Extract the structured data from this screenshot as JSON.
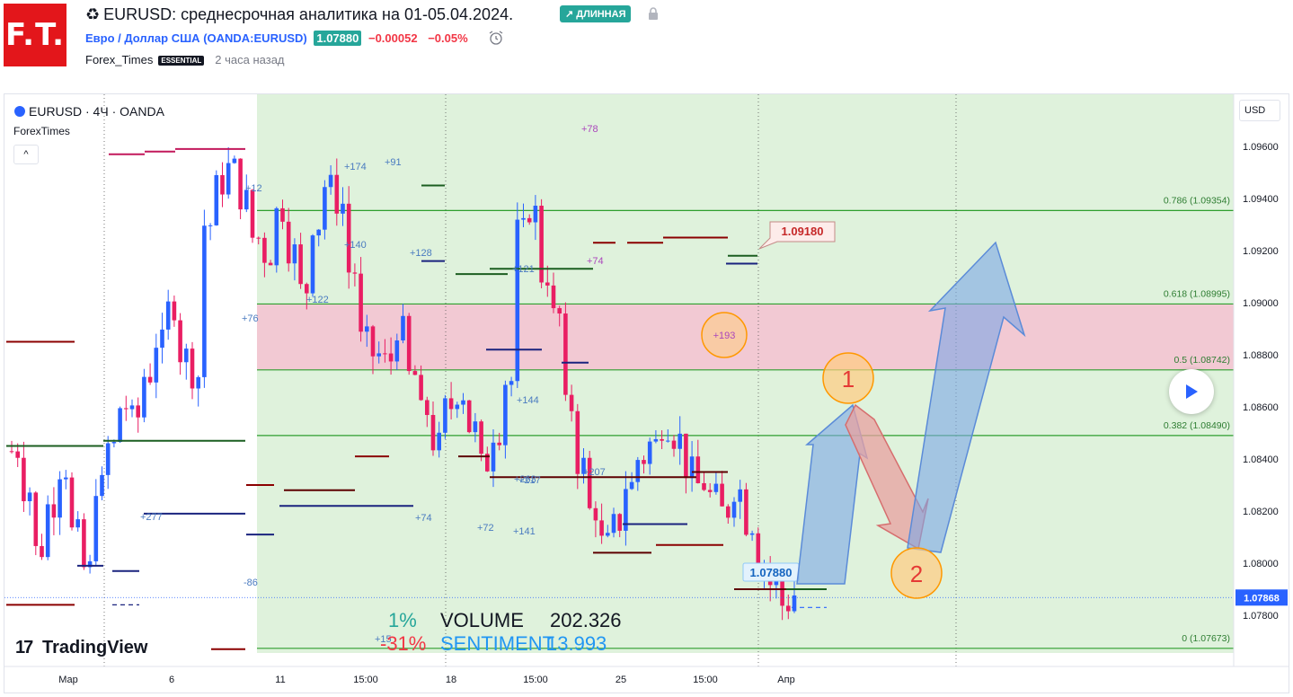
{
  "header": {
    "logo_text": "F.T.",
    "recycle_icon": "♻",
    "title": "EURUSD: среднесрочная аналитика на 01-05.04.2024.",
    "badge": "↗ ДЛИННАЯ",
    "symbol_name": "Евро / Доллар США",
    "symbol_code": "(OANDA:EURUSD)",
    "price": "1.07880",
    "change": "−0.00052",
    "change_pct": "−0.05%",
    "author": "Forex_Times",
    "author_badge": "ESSENTIAL",
    "time_ago": "2 часа назад"
  },
  "chart": {
    "symbol_line": "EURUSD · 4Ч · OANDA",
    "indicator": "ForexTimes",
    "collapse_glyph": "^",
    "currency": "USD",
    "watermark": "TradingView",
    "current_price_label": "1.07868",
    "callout_price": "1.09180",
    "small_price_box": "1.07880",
    "price_axis": [
      "1.09600",
      "1.09400",
      "1.09200",
      "1.09000",
      "1.08800",
      "1.08600",
      "1.08400",
      "1.08200",
      "1.08000",
      "1.07800"
    ],
    "time_axis": [
      "Мар",
      "6",
      "11",
      "15:00",
      "18",
      "15:00",
      "25",
      "15:00",
      "Апр"
    ],
    "fib_levels": [
      {
        "label": "0.786 (1.09354)",
        "price": 1.09354
      },
      {
        "label": "0.618 (1.08995)",
        "price": 1.08995
      },
      {
        "label": "0.5 (1.08742)",
        "price": 1.08742
      },
      {
        "label": "0.382 (1.08490)",
        "price": 1.0849
      },
      {
        "label": "0 (1.07673)",
        "price": 1.07673
      }
    ],
    "annotations": [
      "+12",
      "+174",
      "+91",
      "+140",
      "+128",
      "+122",
      "+76",
      "+121",
      "+74",
      "+78",
      "+193",
      "+72",
      "+141",
      "+263",
      "+217",
      "+277",
      "-86",
      "+74",
      "+15",
      "+144",
      "+207"
    ],
    "circles": [
      "+193",
      "1",
      "2"
    ],
    "stats": {
      "p1": "1%",
      "volume_label": "VOLUME",
      "volume_value": "202.326",
      "p2": "-31%",
      "sentiment_label": "SENTIMENT",
      "sentiment_value": "13.993"
    }
  },
  "colors": {
    "up": "#2962ff",
    "down": "#e91e63",
    "fib": "#2e9e2e",
    "zone": "#f8bbd0",
    "bg_zone": "#d9f0d6",
    "accent": "#26a69a",
    "red": "#f23645"
  }
}
